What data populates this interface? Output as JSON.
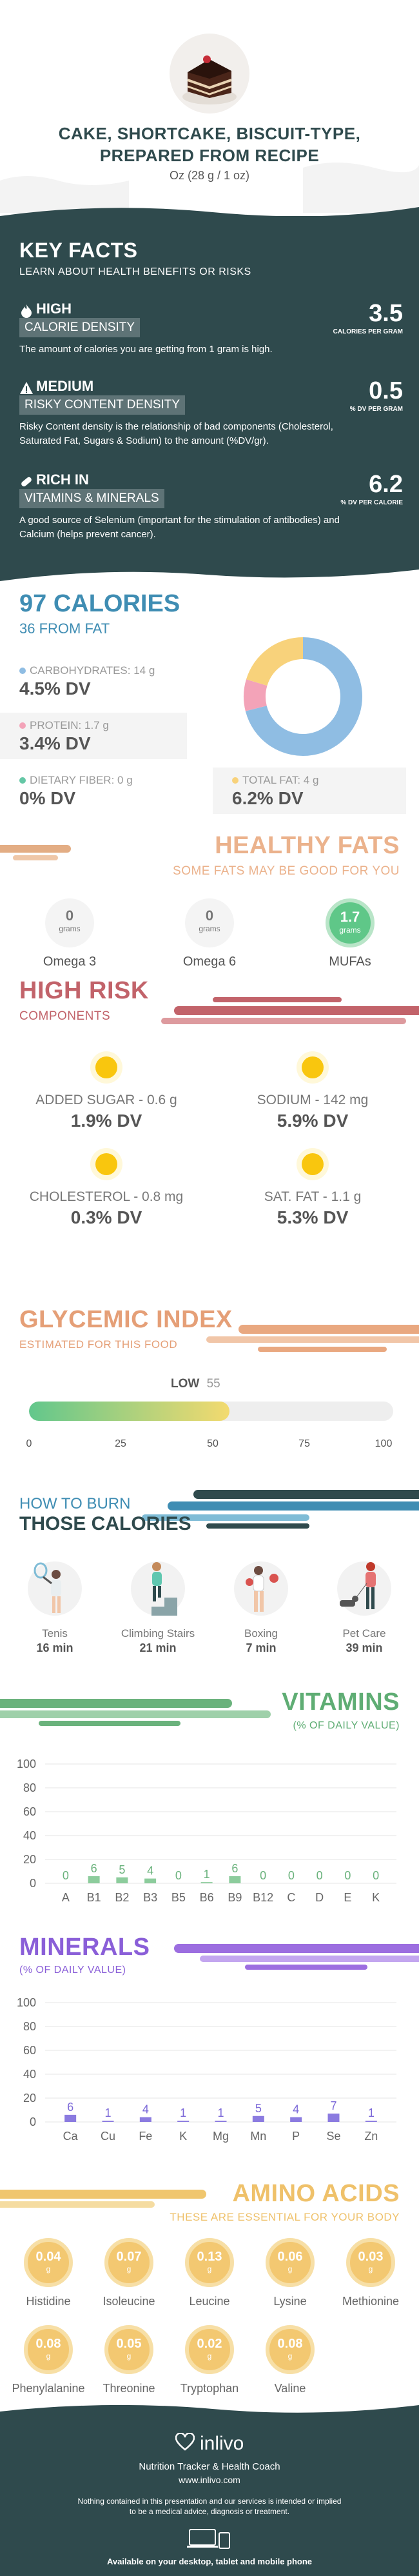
{
  "header": {
    "title_line1": "CAKE, SHORTCAKE, BISCUIT-TYPE,",
    "title_line2": "PREPARED FROM RECIPE",
    "serving": "Oz (28 g / 1 oz)"
  },
  "key_facts": {
    "title": "KEY FACTS",
    "subtitle": "LEARN ABOUT HEALTH BENEFITS OR RISKS",
    "items": [
      {
        "tag": "HIGH",
        "label": "CALORIE DENSITY",
        "value": "3.5",
        "unit": "CALORIES PER GRAM",
        "desc": "The amount of calories you are getting from 1 gram is high."
      },
      {
        "tag": "MEDIUM",
        "label": "RISKY CONTENT DENSITY",
        "value": "0.5",
        "unit": "% DV PER GRAM",
        "desc": "Risky Content density is the relationship of bad components (Cholesterol, Saturated Fat, Sugars & Sodium) to the amount (%DV/gr)."
      },
      {
        "tag": "RICH  IN",
        "label": "VITAMINS & MINERALS",
        "value": "6.2",
        "unit": "% DV PER CALORIE",
        "desc": "A good source of Selenium (important for the stimulation of antibodies) and Calcium (helps prevent cancer)."
      }
    ]
  },
  "calories": {
    "title": "97 CALORIES",
    "from_fat": "36 FROM FAT",
    "carbs_label": "CARBOHYDRATES: 14 g",
    "carbs_dv": "4.5% DV",
    "protein_label": "PROTEIN: 1.7 g",
    "protein_dv": "3.4% DV",
    "fiber_label": "DIETARY FIBER: 0 g",
    "fiber_dv": "0% DV",
    "fat_label": "TOTAL FAT: 4 g",
    "fat_dv": "6.2% DV",
    "colors": {
      "carbs": "#8fbde3",
      "protein": "#f3a3b8",
      "fiber": "#65c7a6",
      "fat": "#f8d27b"
    },
    "donut": [
      {
        "name": "carbs",
        "value": 14
      },
      {
        "name": "protein",
        "value": 1.7
      },
      {
        "name": "fat",
        "value": 4
      }
    ]
  },
  "healthy_fats": {
    "title": "HEALTHY FATS",
    "subtitle": "SOME FATS MAY BE GOOD FOR YOU",
    "items": [
      {
        "value": "0",
        "unit": "grams",
        "name": "Omega 3"
      },
      {
        "value": "0",
        "unit": "grams",
        "name": "Omega 6"
      },
      {
        "value": "1.7",
        "unit": "grams",
        "name": "MUFAs"
      }
    ]
  },
  "high_risk": {
    "title": "HIGH RISK",
    "subtitle": "COMPONENTS",
    "items": [
      {
        "label": "ADDED SUGAR - 0.6 g",
        "dv": "1.9% DV"
      },
      {
        "label": "SODIUM - 142 mg",
        "dv": "5.9% DV"
      },
      {
        "label": "CHOLESTEROL - 0.8 mg",
        "dv": "0.3% DV"
      },
      {
        "label": "SAT. FAT - 1.1 g",
        "dv": "5.3% DV"
      }
    ]
  },
  "glycemic": {
    "title": "GLYCEMIC INDEX",
    "subtitle": "ESTIMATED FOR THIS FOOD",
    "level": "LOW",
    "value": "55",
    "fill_percent": 55,
    "ticks": [
      "0",
      "25",
      "50",
      "75",
      "100"
    ]
  },
  "burn": {
    "title_line1": "HOW TO BURN",
    "title_line2": "THOSE CALORIES",
    "items": [
      {
        "name": "Tenis",
        "time": "16 min",
        "icon": "tennis-player-icon"
      },
      {
        "name": "Climbing Stairs",
        "time": "21 min",
        "icon": "stairs-climber-icon"
      },
      {
        "name": "Boxing",
        "time": "7 min",
        "icon": "boxer-icon"
      },
      {
        "name": "Pet Care",
        "time": "39 min",
        "icon": "dog-walker-icon"
      }
    ]
  },
  "vitamins": {
    "title": "VITAMINS",
    "subtitle": "(% OF DAILY VALUE)",
    "chart_data": {
      "type": "bar",
      "categories": [
        "A",
        "B1",
        "B2",
        "B3",
        "B5",
        "B6",
        "B9",
        "B12",
        "C",
        "D",
        "E",
        "K"
      ],
      "values": [
        0,
        6,
        5,
        4,
        0,
        1,
        6,
        0,
        0,
        0,
        0,
        0
      ],
      "ylim": [
        0,
        100
      ],
      "yticks": [
        "100",
        "80",
        "60",
        "40",
        "20",
        "0"
      ],
      "color": "#8ccc9c",
      "label_color": "#6ab27c"
    }
  },
  "minerals": {
    "title": "MINERALS",
    "subtitle": "(% OF DAILY VALUE)",
    "chart_data": {
      "type": "bar",
      "categories": [
        "Ca",
        "Cu",
        "Fe",
        "K",
        "Mg",
        "Mn",
        "P",
        "Se",
        "Zn"
      ],
      "values": [
        6,
        1,
        4,
        1,
        1,
        5,
        4,
        7,
        1
      ],
      "ylim": [
        0,
        100
      ],
      "yticks": [
        "100",
        "80",
        "60",
        "40",
        "20",
        "0"
      ],
      "color": "#8b7be0",
      "label_color": "#7b68d8"
    }
  },
  "amino": {
    "title": "AMINO ACIDS",
    "subtitle": "THESE ARE ESSENTIAL FOR YOUR BODY",
    "unit": "g",
    "items": [
      {
        "value": "0.04",
        "name": "Histidine"
      },
      {
        "value": "0.07",
        "name": "Isoleucine"
      },
      {
        "value": "0.13",
        "name": "Leucine"
      },
      {
        "value": "0.06",
        "name": "Lysine"
      },
      {
        "value": "0.03",
        "name": "Methionine"
      },
      {
        "value": "0.08",
        "name": "Phenylalanine"
      },
      {
        "value": "0.05",
        "name": "Threonine"
      },
      {
        "value": "0.02",
        "name": "Tryptophan"
      },
      {
        "value": "0.08",
        "name": "Valine"
      }
    ]
  },
  "footer": {
    "brand": "inlivo",
    "tagline": "Nutrition Tracker & Health Coach",
    "url": "www.inlivo.com",
    "disclaimer_line1": "Nothing contained in this presentation and our services is intended or implied",
    "disclaimer_line2": "to be a medical advice, diagnosis or treatment.",
    "available": "Available on your desktop, tablet and mobile phone"
  }
}
